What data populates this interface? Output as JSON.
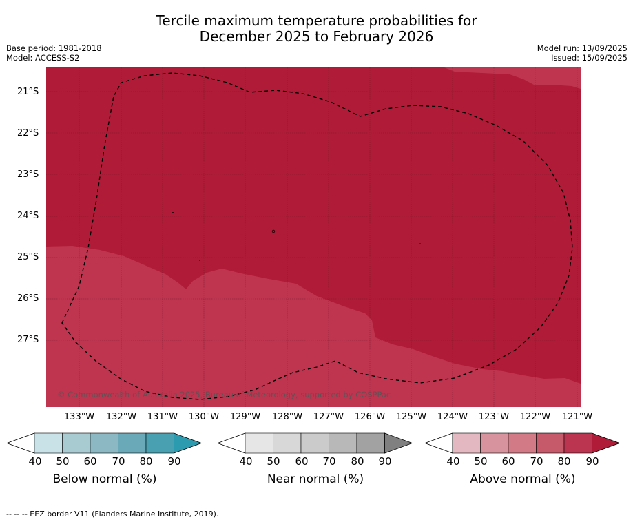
{
  "title_line1": "Tercile maximum temperature probabilities for",
  "title_line2": "December 2025 to February 2026",
  "meta": {
    "base_period": "Base period: 1981-2018",
    "model": "Model: ACCESS-S2",
    "model_run": "Model run: 13/09/2025",
    "issued": "Issued: 15/09/2025"
  },
  "map": {
    "lat_labels": [
      "21°S",
      "22°S",
      "23°S",
      "24°S",
      "25°S",
      "26°S",
      "27°S"
    ],
    "lon_labels": [
      "133°W",
      "132°W",
      "131°W",
      "130°W",
      "129°W",
      "128°W",
      "127°W",
      "126°W",
      "125°W",
      "124°W",
      "123°W",
      "122°W",
      "121°W"
    ],
    "copyright": "© Commonwealth of Australia 2025, Bureau of Meteorology, supported by COSPPac",
    "colors": {
      "above_80": "#b01c37",
      "above_70": "#bf3550"
    }
  },
  "colorbars": [
    {
      "label": "Below normal (%)",
      "ticks": [
        "40",
        "50",
        "60",
        "70",
        "80",
        "90"
      ],
      "colors": [
        "#ffffff",
        "#c9e2e7",
        "#a8cbd2",
        "#8bb8c3",
        "#6aa9b8",
        "#48a0b1",
        "#2c9bb0"
      ]
    },
    {
      "label": "Near normal (%)",
      "ticks": [
        "40",
        "50",
        "60",
        "70",
        "80",
        "90"
      ],
      "colors": [
        "#ffffff",
        "#e6e6e6",
        "#d8d8d8",
        "#cbcbcb",
        "#b8b8b8",
        "#a2a2a2",
        "#808080"
      ]
    },
    {
      "label": "Above normal (%)",
      "ticks": [
        "40",
        "50",
        "60",
        "70",
        "80",
        "90"
      ],
      "colors": [
        "#ffffff",
        "#e3b8c0",
        "#d8949e",
        "#d27a85",
        "#c65a6b",
        "#bc3550",
        "#b01c37"
      ]
    }
  ],
  "footer": "--  --  -- EEZ border V11 (Flanders Marine Institute, 2019)."
}
